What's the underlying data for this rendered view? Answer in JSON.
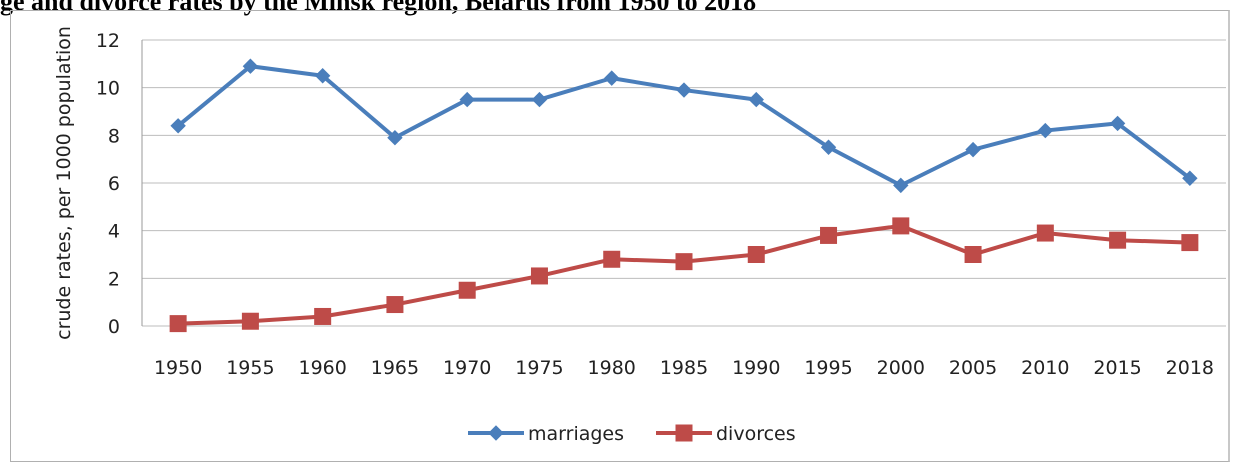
{
  "title": "ge and divorce rates by the Minsk region, Belarus from 1950 to 2018",
  "chart_data": {
    "type": "line",
    "title": "ge and divorce rates by the Minsk region, Belarus from 1950 to 2018",
    "xlabel": "",
    "ylabel": "crude rates, per 1000 population",
    "categories": [
      "1950",
      "1955",
      "1960",
      "1965",
      "1970",
      "1975",
      "1980",
      "1985",
      "1990",
      "1995",
      "2000",
      "2005",
      "2010",
      "2015",
      "2018"
    ],
    "ylim": [
      0,
      12
    ],
    "yticks": [
      0,
      2,
      4,
      6,
      8,
      10,
      12
    ],
    "grid": true,
    "legend": "bottom",
    "series": [
      {
        "name": "marriages",
        "color": "#4a7ebb",
        "marker": "diamond",
        "values": [
          8.4,
          10.9,
          10.5,
          7.9,
          9.5,
          9.5,
          10.4,
          9.9,
          9.5,
          7.5,
          5.9,
          7.4,
          8.2,
          8.5,
          6.2
        ]
      },
      {
        "name": "divorces",
        "color": "#be4b48",
        "marker": "square",
        "values": [
          0.1,
          0.2,
          0.4,
          0.9,
          1.5,
          2.1,
          2.8,
          2.7,
          3.0,
          3.8,
          4.2,
          3.0,
          3.9,
          3.6,
          3.5
        ]
      }
    ]
  }
}
